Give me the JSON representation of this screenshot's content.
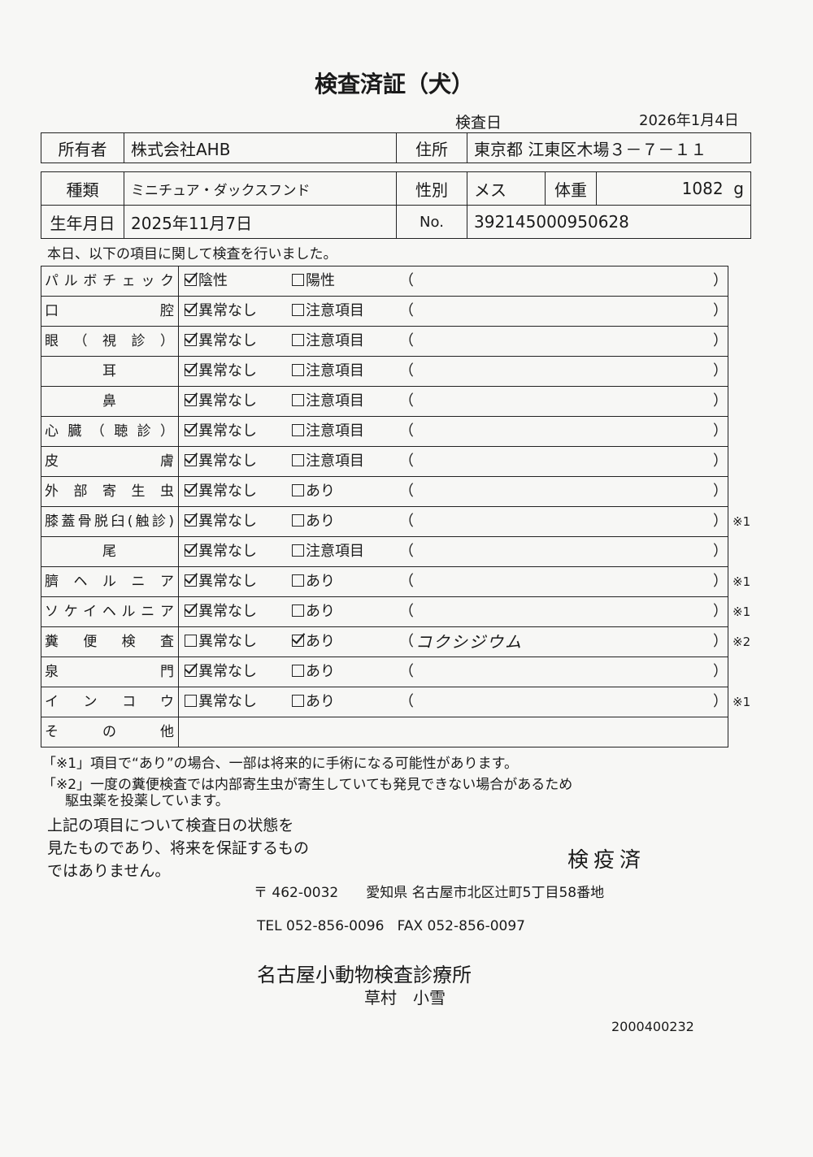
{
  "title": "検査済証（犬）",
  "inspection": {
    "label": "検査日",
    "date": "2026年1月4日"
  },
  "owner": {
    "label": "所有者",
    "value": "株式会社AHB",
    "address_label": "住所",
    "address": "東京都 江東区木場３－７－１１"
  },
  "pet": {
    "breed_label": "種類",
    "breed": "ミニチュア・ダックスフンド",
    "sex_label": "性別",
    "sex": "メス",
    "weight_label": "体重",
    "weight": "1082",
    "weight_unit": "g",
    "birth_label": "生年月日",
    "birth": "2025年11月7日",
    "no_label": "No.",
    "no": "392145000950628"
  },
  "intro": "本日、以下の項目に関して検査を行いました。",
  "items": [
    {
      "label": "パルボチェック",
      "opt1": "陰性",
      "opt1_checked": true,
      "opt2": "陽性",
      "opt2_checked": false,
      "note": "",
      "mark": "",
      "open": "（",
      "close": "）"
    },
    {
      "label": "口腔",
      "opt1": "異常なし",
      "opt1_checked": true,
      "opt2": "注意項目",
      "opt2_checked": false,
      "note": "",
      "mark": "",
      "open": "（",
      "close": "）"
    },
    {
      "label": "眼（視診）",
      "opt1": "異常なし",
      "opt1_checked": true,
      "opt2": "注意項目",
      "opt2_checked": false,
      "note": "",
      "mark": "",
      "open": "（",
      "close": "）"
    },
    {
      "label": "耳",
      "opt1": "異常なし",
      "opt1_checked": true,
      "opt2": "注意項目",
      "opt2_checked": false,
      "note": "",
      "mark": "",
      "open": "（",
      "close": "）",
      "center": true
    },
    {
      "label": "鼻",
      "opt1": "異常なし",
      "opt1_checked": true,
      "opt2": "注意項目",
      "opt2_checked": false,
      "note": "",
      "mark": "",
      "open": "（",
      "close": "）",
      "center": true
    },
    {
      "label": "心臓（聴診）",
      "opt1": "異常なし",
      "opt1_checked": true,
      "opt2": "注意項目",
      "opt2_checked": false,
      "note": "",
      "mark": "",
      "open": "（",
      "close": "）"
    },
    {
      "label": "皮膚",
      "opt1": "異常なし",
      "opt1_checked": true,
      "opt2": "注意項目",
      "opt2_checked": false,
      "note": "",
      "mark": "",
      "open": "（",
      "close": "）"
    },
    {
      "label": "外部寄生虫",
      "opt1": "異常なし",
      "opt1_checked": true,
      "opt2": "あり",
      "opt2_checked": false,
      "note": "",
      "mark": "",
      "open": "（",
      "close": "）"
    },
    {
      "label": "膝蓋骨脱臼(触診)",
      "opt1": "異常なし",
      "opt1_checked": true,
      "opt2": "あり",
      "opt2_checked": false,
      "note": "",
      "mark": "※1",
      "open": "（",
      "close": "）"
    },
    {
      "label": "尾",
      "opt1": "異常なし",
      "opt1_checked": true,
      "opt2": "注意項目",
      "opt2_checked": false,
      "note": "",
      "mark": "",
      "open": "（",
      "close": "）",
      "center": true
    },
    {
      "label": "臍ヘルニア",
      "opt1": "異常なし",
      "opt1_checked": true,
      "opt2": "あり",
      "opt2_checked": false,
      "note": "",
      "mark": "※1",
      "open": "（",
      "close": "）"
    },
    {
      "label": "ソケイヘルニア",
      "opt1": "異常なし",
      "opt1_checked": true,
      "opt2": "あり",
      "opt2_checked": false,
      "note": "",
      "mark": "※1",
      "open": "（",
      "close": "）"
    },
    {
      "label": "糞便検査",
      "opt1": "異常なし",
      "opt1_checked": false,
      "opt2": "あり",
      "opt2_checked": true,
      "note": "コクシジウム",
      "mark": "※2",
      "open": "（",
      "close": "）"
    },
    {
      "label": "泉門",
      "opt1": "異常なし",
      "opt1_checked": true,
      "opt2": "あり",
      "opt2_checked": false,
      "note": "",
      "mark": "",
      "open": "（",
      "close": "）"
    },
    {
      "label": "インコウ",
      "opt1": "異常なし",
      "opt1_checked": false,
      "opt2": "あり",
      "opt2_checked": false,
      "note": "",
      "mark": "※1",
      "open": "（",
      "close": "）"
    },
    {
      "label": "その他",
      "opt1": "",
      "opt2": "",
      "note": "",
      "mark": "",
      "open": "",
      "close": ""
    }
  ],
  "footnotes": {
    "n1": "「※1」項目で“あり”の場合、一部は将来的に手術になる可能性があります。",
    "n2a": "「※2」一度の糞便検査では内部寄生虫が寄生していても発見できない場合があるため",
    "n2b": "駆虫薬を投薬しています。"
  },
  "disclaimer": [
    "上記の項目について検査日の状態を",
    "見たものであり、将来を保証するもの",
    "ではありません。"
  ],
  "stamp": "検疫済",
  "clinic": {
    "postal": "〒 462-0032",
    "address": "愛知県 名古屋市北区辻町5丁目58番地",
    "tel": "TEL 052-856-0096",
    "fax": "FAX 052-856-0097",
    "name": "名古屋小動物検査診療所",
    "vet": "草村　小雪"
  },
  "doc_code": "2000400232"
}
